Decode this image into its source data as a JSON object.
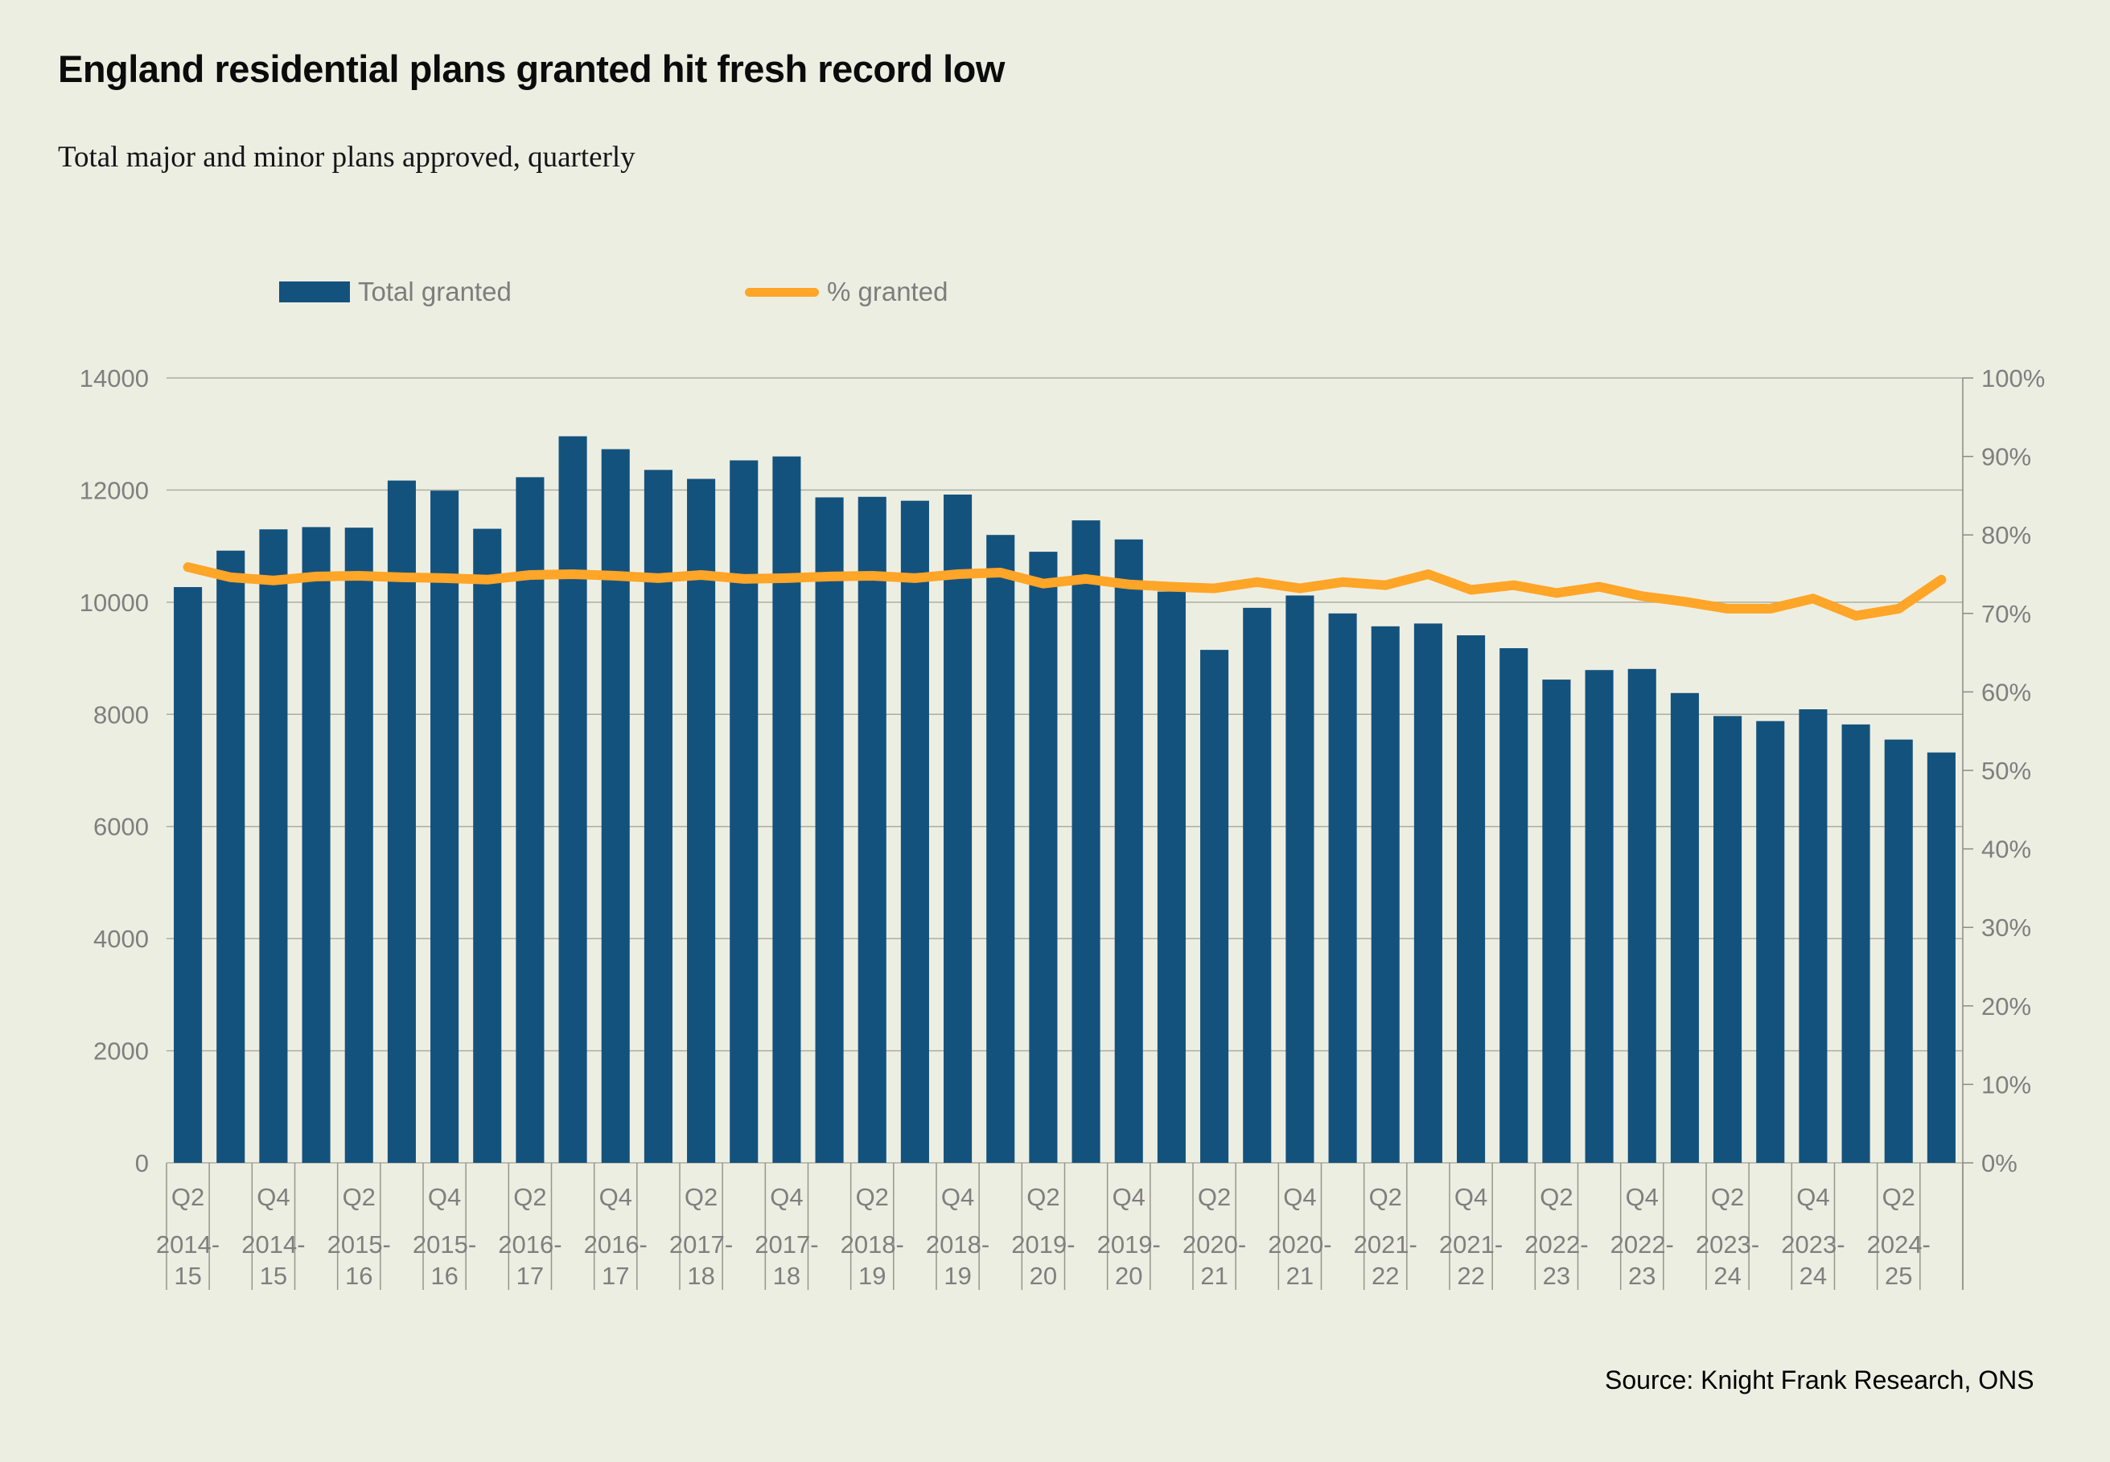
{
  "header": {
    "title": "England residential plans granted hit fresh record low",
    "subtitle": "Total major and minor plans approved, quarterly"
  },
  "legend": [
    {
      "label": "Total granted",
      "type": "bar",
      "color": "#14527E"
    },
    {
      "label": "% granted",
      "type": "line",
      "color": "#FFA527"
    }
  ],
  "source": "Source: Knight Frank Research, ONS",
  "colors": {
    "background": "#EDEEE2",
    "bar": "#14527E",
    "line": "#FFA527",
    "grid": "#ADAEA3",
    "axis": "#8A8B85",
    "tick_line": "#96968C",
    "axis_text": "#7F7F7F"
  },
  "chart_data": {
    "type": "bar",
    "title": "England residential plans granted hit fresh record low",
    "subtitle": "Total major and minor plans approved, quarterly",
    "grid": "horizontal",
    "legend_position": "top",
    "x_tick_every": 2,
    "categories": [
      {
        "quarter": "Q2",
        "year": "2014-15"
      },
      {
        "quarter": "",
        "year": ""
      },
      {
        "quarter": "Q4",
        "year": "2014-15"
      },
      {
        "quarter": "",
        "year": ""
      },
      {
        "quarter": "Q2",
        "year": "2015-16"
      },
      {
        "quarter": "",
        "year": ""
      },
      {
        "quarter": "Q4",
        "year": "2015-16"
      },
      {
        "quarter": "",
        "year": ""
      },
      {
        "quarter": "Q2",
        "year": "2016-17"
      },
      {
        "quarter": "",
        "year": ""
      },
      {
        "quarter": "Q4",
        "year": "2016-17"
      },
      {
        "quarter": "",
        "year": ""
      },
      {
        "quarter": "Q2",
        "year": "2017-18"
      },
      {
        "quarter": "",
        "year": ""
      },
      {
        "quarter": "Q4",
        "year": "2017-18"
      },
      {
        "quarter": "",
        "year": ""
      },
      {
        "quarter": "Q2",
        "year": "2018-19"
      },
      {
        "quarter": "",
        "year": ""
      },
      {
        "quarter": "Q4",
        "year": "2018-19"
      },
      {
        "quarter": "",
        "year": ""
      },
      {
        "quarter": "Q2",
        "year": "2019-20"
      },
      {
        "quarter": "",
        "year": ""
      },
      {
        "quarter": "Q4",
        "year": "2019-20"
      },
      {
        "quarter": "",
        "year": ""
      },
      {
        "quarter": "Q2",
        "year": "2020-21"
      },
      {
        "quarter": "",
        "year": ""
      },
      {
        "quarter": "Q4",
        "year": "2020-21"
      },
      {
        "quarter": "",
        "year": ""
      },
      {
        "quarter": "Q2",
        "year": "2021-22"
      },
      {
        "quarter": "",
        "year": ""
      },
      {
        "quarter": "Q4",
        "year": "2021-22"
      },
      {
        "quarter": "",
        "year": ""
      },
      {
        "quarter": "Q2",
        "year": "2022-23"
      },
      {
        "quarter": "",
        "year": ""
      },
      {
        "quarter": "Q4",
        "year": "2022-23"
      },
      {
        "quarter": "",
        "year": ""
      },
      {
        "quarter": "Q2",
        "year": "2023-24"
      },
      {
        "quarter": "",
        "year": ""
      },
      {
        "quarter": "Q4",
        "year": "2023-24"
      },
      {
        "quarter": "",
        "year": ""
      },
      {
        "quarter": "Q2",
        "year": "2024-25"
      },
      {
        "quarter": "",
        "year": ""
      }
    ],
    "series": [
      {
        "name": "Total granted",
        "type": "bar",
        "axis": "left",
        "values": [
          10270,
          10920,
          11300,
          11340,
          11330,
          12170,
          11990,
          11310,
          12230,
          12960,
          12730,
          12360,
          12200,
          12530,
          12600,
          11870,
          11880,
          11810,
          11920,
          11200,
          10900,
          11460,
          11120,
          10190,
          9150,
          9900,
          10120,
          9800,
          9570,
          9620,
          9410,
          9180,
          8620,
          8790,
          8810,
          8380,
          7970,
          7880,
          8090,
          7820,
          7550,
          7320
        ]
      },
      {
        "name": "% granted",
        "type": "line",
        "axis": "right",
        "values": [
          75.9,
          74.6,
          74.2,
          74.7,
          74.8,
          74.6,
          74.5,
          74.3,
          74.9,
          75.0,
          74.8,
          74.5,
          74.9,
          74.4,
          74.5,
          74.7,
          74.8,
          74.5,
          75.0,
          75.2,
          73.8,
          74.4,
          73.7,
          73.4,
          73.2,
          74.0,
          73.2,
          74.0,
          73.6,
          75.0,
          73.0,
          73.6,
          72.6,
          73.4,
          72.2,
          71.5,
          70.6,
          70.6,
          71.9,
          69.7,
          70.6,
          74.3
        ]
      }
    ],
    "left_axis": {
      "min": 0,
      "max": 14000,
      "step": 2000,
      "suffix": ""
    },
    "right_axis": {
      "min": 0,
      "max": 100,
      "step": 10,
      "suffix": "%"
    }
  }
}
